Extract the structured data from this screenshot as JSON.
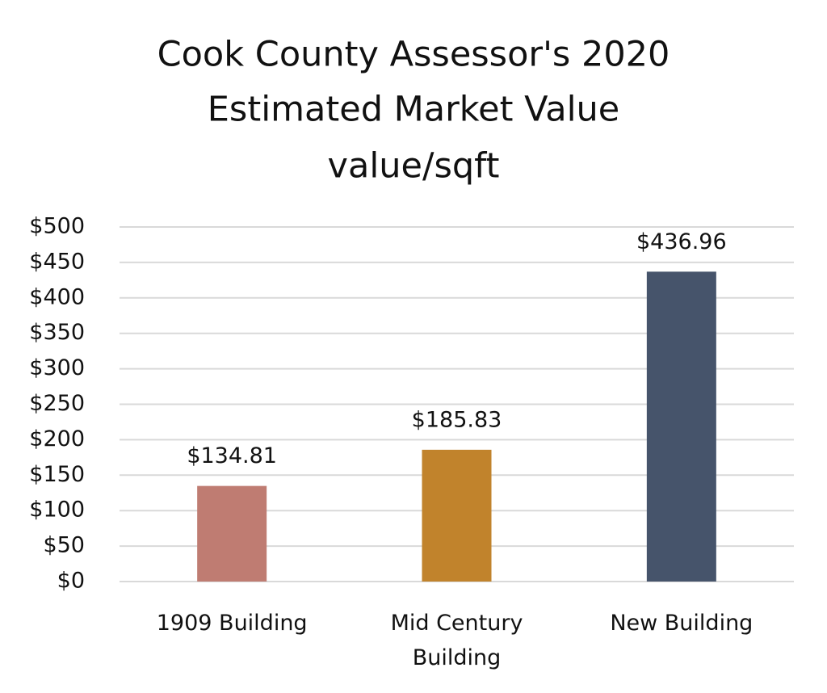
{
  "chart_data": {
    "type": "bar",
    "title": [
      "Cook County Assessor's 2020",
      "Estimated Market Value",
      "value/sqft"
    ],
    "categories": [
      "1909 Building",
      "Mid Century Building",
      "New Building"
    ],
    "values": [
      134.81,
      185.83,
      436.96
    ],
    "value_labels": [
      "$134.81",
      "$185.83",
      "$436.96"
    ],
    "colors": [
      "#bf7c72",
      "#c1832c",
      "#46546b"
    ],
    "ylim": [
      0,
      500
    ],
    "yticks": [
      {
        "value": 0,
        "label": "$0"
      },
      {
        "value": 50,
        "label": "$50"
      },
      {
        "value": 100,
        "label": "$100"
      },
      {
        "value": 150,
        "label": "$150"
      },
      {
        "value": 200,
        "label": "$200"
      },
      {
        "value": 250,
        "label": "$250"
      },
      {
        "value": 300,
        "label": "$300"
      },
      {
        "value": 350,
        "label": "$350"
      },
      {
        "value": 400,
        "label": "$400"
      },
      {
        "value": 450,
        "label": "$450"
      },
      {
        "value": 500,
        "label": "$500"
      }
    ],
    "grid": true
  }
}
